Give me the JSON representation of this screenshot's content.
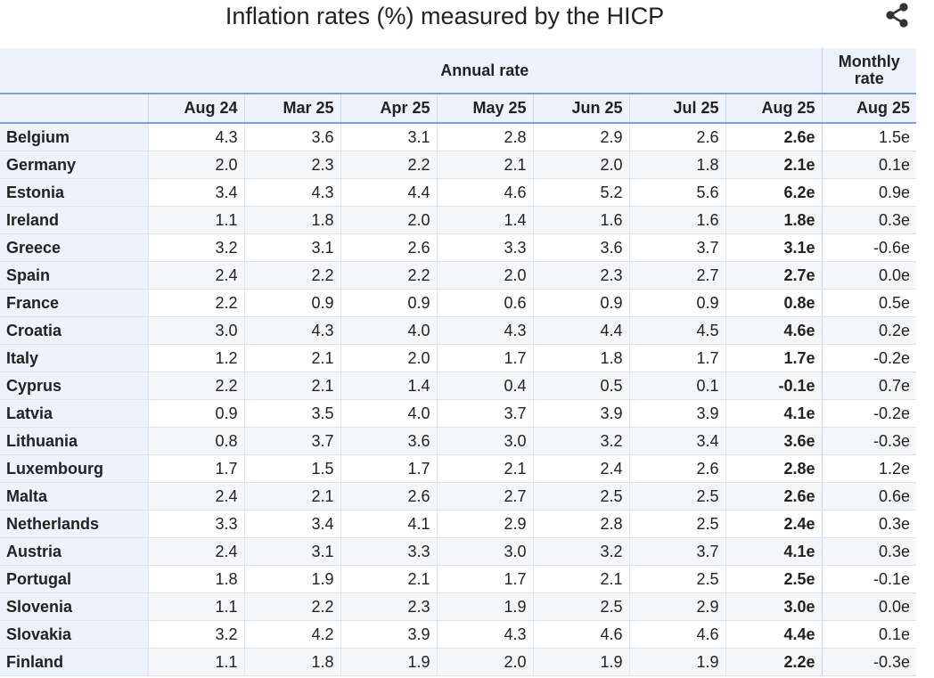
{
  "title": "Inflation rates (%) measured by the HICP",
  "icons": {
    "share": "share-icon"
  },
  "header": {
    "annual_label": "Annual rate",
    "monthly_label_line1": "Monthly",
    "monthly_label_line2": "rate",
    "columns": [
      "Aug 24",
      "Mar 25",
      "Apr 25",
      "May 25",
      "Jun 25",
      "Jul 25",
      "Aug 25",
      "Aug 25"
    ]
  },
  "rows": [
    {
      "country": "Belgium",
      "values": [
        "4.3",
        "3.6",
        "3.1",
        "2.8",
        "2.9",
        "2.6",
        "2.6e",
        "1.5e"
      ]
    },
    {
      "country": "Germany",
      "values": [
        "2.0",
        "2.3",
        "2.2",
        "2.1",
        "2.0",
        "1.8",
        "2.1e",
        "0.1e"
      ]
    },
    {
      "country": "Estonia",
      "values": [
        "3.4",
        "4.3",
        "4.4",
        "4.6",
        "5.2",
        "5.6",
        "6.2e",
        "0.9e"
      ]
    },
    {
      "country": "Ireland",
      "values": [
        "1.1",
        "1.8",
        "2.0",
        "1.4",
        "1.6",
        "1.6",
        "1.8e",
        "0.3e"
      ]
    },
    {
      "country": "Greece",
      "values": [
        "3.2",
        "3.1",
        "2.6",
        "3.3",
        "3.6",
        "3.7",
        "3.1e",
        "-0.6e"
      ]
    },
    {
      "country": "Spain",
      "values": [
        "2.4",
        "2.2",
        "2.2",
        "2.0",
        "2.3",
        "2.7",
        "2.7e",
        "0.0e"
      ]
    },
    {
      "country": "France",
      "values": [
        "2.2",
        "0.9",
        "0.9",
        "0.6",
        "0.9",
        "0.9",
        "0.8e",
        "0.5e"
      ]
    },
    {
      "country": "Croatia",
      "values": [
        "3.0",
        "4.3",
        "4.0",
        "4.3",
        "4.4",
        "4.5",
        "4.6e",
        "0.2e"
      ]
    },
    {
      "country": "Italy",
      "values": [
        "1.2",
        "2.1",
        "2.0",
        "1.7",
        "1.8",
        "1.7",
        "1.7e",
        "-0.2e"
      ]
    },
    {
      "country": "Cyprus",
      "values": [
        "2.2",
        "2.1",
        "1.4",
        "0.4",
        "0.5",
        "0.1",
        "-0.1e",
        "0.7e"
      ]
    },
    {
      "country": "Latvia",
      "values": [
        "0.9",
        "3.5",
        "4.0",
        "3.7",
        "3.9",
        "3.9",
        "4.1e",
        "-0.2e"
      ]
    },
    {
      "country": "Lithuania",
      "values": [
        "0.8",
        "3.7",
        "3.6",
        "3.0",
        "3.2",
        "3.4",
        "3.6e",
        "-0.3e"
      ]
    },
    {
      "country": "Luxembourg",
      "values": [
        "1.7",
        "1.5",
        "1.7",
        "2.1",
        "2.4",
        "2.6",
        "2.8e",
        "1.2e"
      ]
    },
    {
      "country": "Malta",
      "values": [
        "2.4",
        "2.1",
        "2.6",
        "2.7",
        "2.5",
        "2.5",
        "2.6e",
        "0.6e"
      ]
    },
    {
      "country": "Netherlands",
      "values": [
        "3.3",
        "3.4",
        "4.1",
        "2.9",
        "2.8",
        "2.5",
        "2.4e",
        "0.3e"
      ]
    },
    {
      "country": "Austria",
      "values": [
        "2.4",
        "3.1",
        "3.3",
        "3.0",
        "3.2",
        "3.7",
        "4.1e",
        "0.3e"
      ]
    },
    {
      "country": "Portugal",
      "values": [
        "1.8",
        "1.9",
        "2.1",
        "1.7",
        "2.1",
        "2.5",
        "2.5e",
        "-0.1e"
      ]
    },
    {
      "country": "Slovenia",
      "values": [
        "1.1",
        "2.2",
        "2.3",
        "1.9",
        "2.5",
        "2.9",
        "3.0e",
        "0.0e"
      ]
    },
    {
      "country": "Slovakia",
      "values": [
        "3.2",
        "4.2",
        "3.9",
        "4.3",
        "4.6",
        "4.6",
        "4.4e",
        "0.1e"
      ]
    },
    {
      "country": "Finland",
      "values": [
        "1.1",
        "1.8",
        "1.9",
        "2.0",
        "1.9",
        "1.9",
        "2.2e",
        "-0.3e"
      ]
    }
  ]
}
